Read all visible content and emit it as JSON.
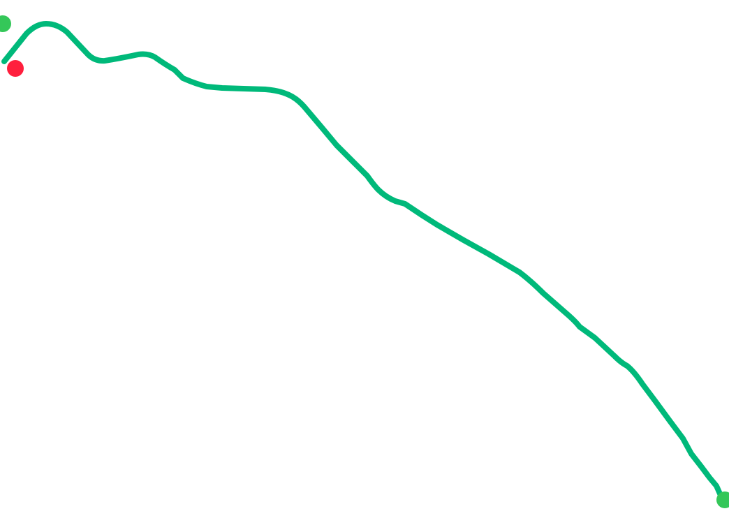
{
  "map": {
    "route_color": "#00b97a",
    "start_marker_color": "#34c759",
    "end_marker_color": "#34c759",
    "current_position_color": "#ff1f3d",
    "markers": [
      {
        "name": "route-start-marker",
        "type": "start"
      },
      {
        "name": "current-location-marker",
        "type": "current"
      },
      {
        "name": "route-end-marker",
        "type": "end"
      }
    ]
  }
}
